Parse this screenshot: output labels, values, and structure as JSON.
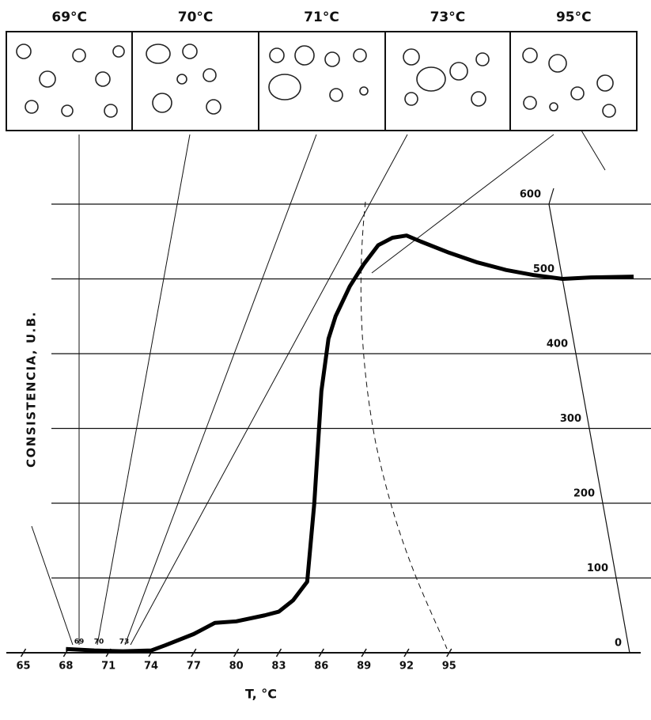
{
  "chart_data": {
    "type": "line",
    "panel_labels": [
      "69°C",
      "70°C",
      "71°C",
      "73°C",
      "95°C"
    ],
    "y_label": "CONSISTENCIA, U.B.",
    "x_label": "T, °C",
    "annotations": [
      "69",
      "70",
      "73"
    ],
    "series": [
      {
        "color": "#000000",
        "x": [
          68,
          70,
          72,
          74,
          75,
          77,
          78.5,
          80,
          82,
          83,
          84,
          85,
          85.5,
          86,
          86.5,
          87,
          88,
          89,
          90,
          91,
          92,
          93,
          95,
          97,
          99,
          101,
          103,
          105,
          108
        ],
        "values": [
          5,
          3,
          2,
          3,
          10,
          25,
          40,
          42,
          50,
          55,
          70,
          95,
          200,
          350,
          420,
          450,
          490,
          520,
          545,
          555,
          558,
          550,
          535,
          522,
          512,
          505,
          500,
          502,
          503
        ]
      }
    ],
    "xlim": [
      63.8,
      108.5
    ],
    "ylim": [
      0,
      600
    ],
    "xticks": [
      65,
      68,
      71,
      74,
      77,
      80,
      83,
      86,
      89,
      92,
      95
    ],
    "yticks": [
      0,
      100,
      200,
      300,
      400,
      500,
      600
    ],
    "grid": true
  }
}
